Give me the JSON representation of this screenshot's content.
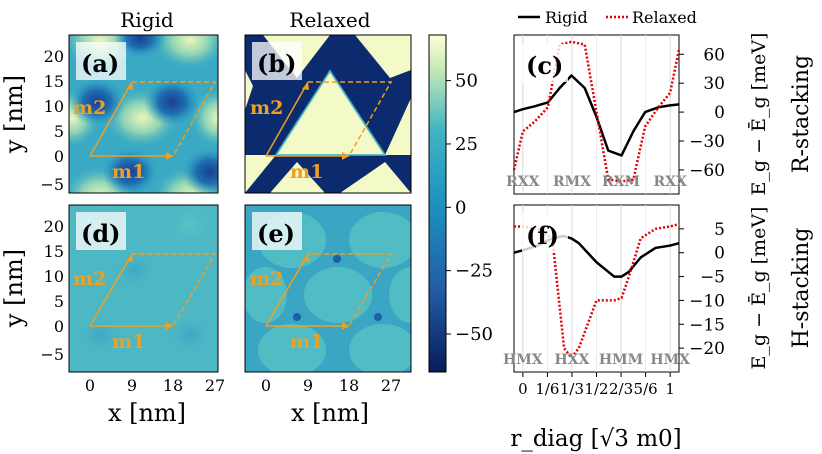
{
  "column_titles": [
    "Rigid",
    "Relaxed"
  ],
  "map_axes": {
    "ylabel": "y [nm]",
    "xlabel": "x [nm]",
    "xticks": [
      "0",
      "9",
      "18",
      "27"
    ],
    "yticks": [
      "−5",
      "0",
      "5",
      "10",
      "15",
      "20"
    ],
    "vector_labels": [
      "m1",
      "m2"
    ]
  },
  "colorbar": {
    "range": [
      -65,
      68
    ],
    "ticks": [
      "50",
      "25",
      "0",
      "−25",
      "−50"
    ],
    "tick_values": [
      50,
      25,
      0,
      -25,
      -50
    ]
  },
  "panels": {
    "a": {
      "letter": "(a)",
      "stacking": "R",
      "model": "Rigid"
    },
    "b": {
      "letter": "(b)",
      "stacking": "R",
      "model": "Relaxed"
    },
    "c": {
      "letter": "(c)",
      "stacking": "R"
    },
    "d": {
      "letter": "(d)",
      "stacking": "H",
      "model": "Rigid"
    },
    "e": {
      "letter": "(e)",
      "stacking": "H",
      "model": "Relaxed"
    },
    "f": {
      "letter": "(f)",
      "stacking": "H"
    }
  },
  "row_labels": [
    "R-stacking",
    "H-stacking"
  ],
  "chart_data": [
    {
      "type": "line",
      "panel": "c",
      "title": "R-stacking",
      "xlabel": "r_diag [√3 m0]",
      "ylabel": "E_g − Ē_g [meV]",
      "legend": [
        "Rigid",
        "Relaxed"
      ],
      "legend_position": "top",
      "xlim": [
        -0.06,
        1.06
      ],
      "ylim": [
        -85,
        80
      ],
      "yticks": [
        60,
        30,
        0,
        -30,
        -60
      ],
      "ytick_labels": [
        "60",
        "30",
        "0",
        "−30",
        "−60"
      ],
      "site_labels": [
        "RXX",
        "RMX",
        "RXM",
        "RXX"
      ],
      "x": [
        -0.06,
        0,
        0.08,
        0.17,
        0.25,
        0.33,
        0.42,
        0.5,
        0.58,
        0.67,
        0.75,
        0.83,
        0.92,
        1,
        1.06
      ],
      "series": [
        {
          "name": "Rigid",
          "values": [
            0,
            3,
            6,
            10,
            25,
            38,
            25,
            -5,
            -40,
            -45,
            -20,
            0,
            5,
            7,
            8
          ]
        },
        {
          "name": "Relaxed",
          "values": [
            -60,
            -20,
            -10,
            5,
            70,
            73,
            70,
            0,
            -70,
            -72,
            -70,
            -15,
            5,
            20,
            65
          ]
        }
      ]
    },
    {
      "type": "line",
      "panel": "f",
      "title": "H-stacking",
      "xlabel": "r_diag [√3 m0]",
      "ylabel": "E_g − Ē_g [meV]",
      "legend": [
        "Rigid",
        "Relaxed"
      ],
      "xlim": [
        -0.06,
        1.06
      ],
      "ylim": [
        -25,
        10
      ],
      "yticks": [
        5,
        0,
        -5,
        -10,
        -15,
        -20
      ],
      "ytick_labels": [
        "5",
        "0",
        "−5",
        "−10",
        "−15",
        "−20"
      ],
      "site_labels": [
        "HMX",
        "HXX",
        "HMM",
        "HMX"
      ],
      "xticks": [
        0,
        0.1667,
        0.3333,
        0.5,
        0.6667,
        0.8333,
        1
      ],
      "xtick_labels": [
        "0",
        "1/6",
        "1/3",
        "1/2",
        "2/3",
        "5/6",
        "1"
      ],
      "x": [
        -0.06,
        0,
        0.1,
        0.2,
        0.28,
        0.33,
        0.38,
        0.5,
        0.62,
        0.67,
        0.72,
        0.8,
        0.9,
        1,
        1.06
      ],
      "series": [
        {
          "name": "Rigid",
          "values": [
            0,
            0.5,
            1.5,
            3,
            3.5,
            3,
            2,
            -2,
            -5,
            -5,
            -4,
            -1,
            1,
            1.5,
            2
          ]
        },
        {
          "name": "Relaxed",
          "values": [
            5.5,
            5.5,
            5,
            3,
            -20,
            -22,
            -20,
            -10,
            -10,
            -9.5,
            -5,
            3,
            5,
            5.5,
            6
          ]
        }
      ]
    }
  ]
}
